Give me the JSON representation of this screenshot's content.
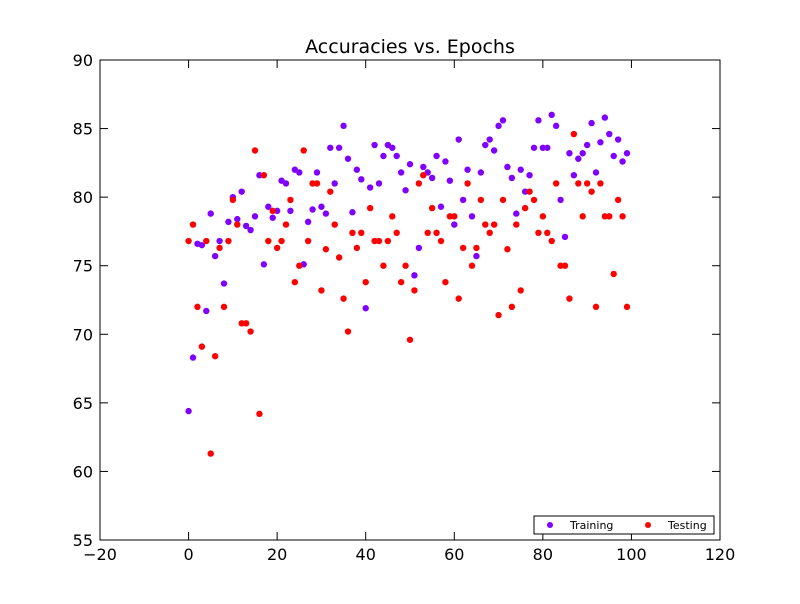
{
  "chart_data": {
    "type": "scatter",
    "title": "Accuracies vs. Epochs",
    "xlabel": "",
    "ylabel": "",
    "xlim": [
      -20,
      120
    ],
    "ylim": [
      55,
      90
    ],
    "xticks": [
      -20,
      0,
      20,
      40,
      60,
      80,
      100,
      120
    ],
    "yticks": [
      55,
      60,
      65,
      70,
      75,
      80,
      85,
      90
    ],
    "grid": false,
    "legend": {
      "placement": "bottom-right",
      "entries": [
        "Training",
        "Testing"
      ]
    },
    "series": [
      {
        "name": "Training",
        "color": "#7f00ff",
        "x": [
          0,
          1,
          2,
          3,
          4,
          5,
          6,
          7,
          8,
          9,
          10,
          11,
          12,
          13,
          14,
          15,
          16,
          17,
          18,
          19,
          20,
          21,
          22,
          23,
          24,
          25,
          26,
          27,
          28,
          29,
          30,
          31,
          32,
          33,
          34,
          35,
          36,
          37,
          38,
          39,
          40,
          41,
          42,
          43,
          44,
          45,
          46,
          47,
          48,
          49,
          50,
          51,
          52,
          53,
          54,
          55,
          56,
          57,
          58,
          59,
          60,
          61,
          62,
          63,
          64,
          65,
          66,
          67,
          68,
          69,
          70,
          71,
          72,
          73,
          74,
          75,
          76,
          77,
          78,
          79,
          80,
          81,
          82,
          83,
          84,
          85,
          86,
          87,
          88,
          89,
          90,
          91,
          92,
          93,
          94,
          95,
          96,
          97,
          98,
          99
        ],
        "y": [
          64.4,
          68.3,
          76.6,
          76.5,
          71.7,
          78.8,
          75.7,
          76.8,
          73.7,
          78.2,
          80.0,
          78.4,
          80.4,
          77.9,
          77.6,
          78.6,
          81.6,
          75.1,
          79.3,
          78.5,
          79.0,
          81.2,
          81.0,
          79.0,
          82.0,
          81.8,
          75.1,
          78.2,
          79.1,
          81.8,
          79.3,
          78.8,
          83.6,
          81.0,
          83.6,
          85.2,
          82.8,
          78.9,
          82.0,
          81.3,
          71.9,
          80.7,
          83.8,
          81.0,
          83.0,
          83.8,
          83.6,
          83.0,
          81.8,
          80.5,
          82.4,
          74.3,
          76.3,
          82.2,
          81.8,
          81.4,
          83.0,
          79.3,
          82.6,
          81.2,
          78.0,
          84.2,
          79.8,
          82.0,
          78.6,
          75.7,
          81.8,
          83.8,
          84.2,
          83.4,
          85.2,
          85.6,
          82.2,
          81.4,
          78.8,
          82.0,
          80.4,
          81.6,
          83.6,
          85.6,
          83.6,
          83.6,
          86.0,
          85.2,
          79.8,
          77.1,
          83.2,
          81.6,
          82.8,
          83.2,
          83.8,
          85.4,
          81.8,
          84.0,
          85.8,
          84.6,
          83.0,
          84.2,
          82.6,
          83.2
        ]
      },
      {
        "name": "Testing",
        "color": "#ff0000",
        "x": [
          0,
          1,
          2,
          3,
          4,
          5,
          6,
          7,
          8,
          9,
          10,
          11,
          12,
          13,
          14,
          15,
          16,
          17,
          18,
          19,
          20,
          21,
          22,
          23,
          24,
          25,
          26,
          27,
          28,
          29,
          30,
          31,
          32,
          33,
          34,
          35,
          36,
          37,
          38,
          39,
          40,
          41,
          42,
          43,
          44,
          45,
          46,
          47,
          48,
          49,
          50,
          51,
          52,
          53,
          54,
          55,
          56,
          57,
          58,
          59,
          60,
          61,
          62,
          63,
          64,
          65,
          66,
          67,
          68,
          69,
          70,
          71,
          72,
          73,
          74,
          75,
          76,
          77,
          78,
          79,
          80,
          81,
          82,
          83,
          84,
          85,
          86,
          87,
          88,
          89,
          90,
          91,
          92,
          93,
          94,
          95,
          96,
          97,
          98,
          99
        ],
        "y": [
          76.8,
          78.0,
          72.0,
          69.1,
          76.8,
          61.3,
          68.4,
          76.3,
          72.0,
          76.8,
          79.8,
          78.0,
          70.8,
          70.8,
          70.2,
          83.4,
          64.2,
          81.6,
          76.8,
          79.0,
          76.3,
          76.8,
          78.0,
          79.8,
          73.8,
          75.0,
          83.4,
          76.8,
          81.0,
          81.0,
          73.2,
          76.2,
          80.4,
          78.0,
          75.6,
          72.6,
          70.2,
          77.4,
          76.3,
          77.4,
          73.8,
          79.2,
          76.8,
          76.8,
          75.0,
          76.8,
          78.6,
          77.4,
          73.8,
          75.0,
          69.6,
          73.2,
          81.0,
          81.6,
          77.4,
          79.2,
          77.4,
          76.8,
          73.8,
          78.6,
          78.6,
          72.6,
          76.3,
          81.0,
          75.0,
          76.3,
          79.8,
          78.0,
          77.4,
          78.0,
          71.4,
          79.8,
          76.2,
          72.0,
          78.0,
          73.2,
          79.2,
          80.4,
          79.8,
          77.4,
          78.6,
          77.4,
          76.8,
          81.0,
          75.0,
          75.0,
          72.6,
          84.6,
          81.0,
          78.6,
          81.0,
          80.4,
          72.0,
          81.0,
          78.6,
          78.6,
          74.4,
          79.8,
          78.6,
          72.0
        ]
      }
    ]
  }
}
